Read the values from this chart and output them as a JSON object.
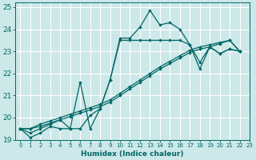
{
  "xlabel": "Humidex (Indice chaleur)",
  "background_color": "#cce8e8",
  "grid_color": "#ffffff",
  "line_color": "#006666",
  "xlim": [
    -0.5,
    23
  ],
  "ylim": [
    19,
    25.2
  ],
  "xticks": [
    0,
    1,
    2,
    3,
    4,
    5,
    6,
    7,
    8,
    9,
    10,
    11,
    12,
    13,
    14,
    15,
    16,
    17,
    18,
    19,
    20,
    21,
    22,
    23
  ],
  "yticks": [
    19,
    20,
    21,
    22,
    23,
    24,
    25
  ],
  "s0_x": [
    0,
    1,
    2,
    3,
    4,
    5,
    6,
    7,
    8,
    9,
    10,
    11,
    12,
    13,
    14,
    15,
    16,
    17,
    18,
    19,
    20,
    21,
    22
  ],
  "s0_y": [
    19.5,
    19.1,
    19.3,
    19.6,
    19.5,
    19.5,
    21.6,
    19.5,
    20.4,
    21.7,
    23.6,
    23.6,
    24.1,
    24.85,
    24.2,
    24.3,
    24.0,
    23.3,
    22.2,
    23.2,
    22.9,
    23.1,
    23.0
  ],
  "s1_x": [
    0,
    1,
    2,
    3,
    4,
    5,
    6,
    7,
    8,
    9,
    10,
    11,
    12,
    13,
    14,
    15,
    16,
    17,
    18,
    19,
    20,
    21,
    22
  ],
  "s1_y": [
    19.5,
    19.3,
    19.5,
    19.7,
    19.9,
    19.5,
    19.5,
    20.1,
    20.4,
    21.7,
    23.5,
    23.5,
    23.5,
    23.5,
    23.5,
    23.5,
    23.5,
    23.3,
    22.5,
    23.2,
    22.9,
    23.1,
    23.0
  ],
  "s2_x": [
    0,
    1,
    2,
    3,
    4,
    5,
    6,
    7,
    8,
    9,
    10,
    11,
    12,
    13,
    14,
    15,
    16,
    17,
    18,
    19,
    20,
    21,
    22
  ],
  "s2_y": [
    19.5,
    19.5,
    19.7,
    19.85,
    20.0,
    20.15,
    20.3,
    20.45,
    20.6,
    20.8,
    21.1,
    21.4,
    21.7,
    22.0,
    22.3,
    22.55,
    22.8,
    23.05,
    23.2,
    23.3,
    23.4,
    23.5,
    23.0
  ],
  "s3_x": [
    0,
    1,
    2,
    3,
    4,
    5,
    6,
    7,
    8,
    9,
    10,
    11,
    12,
    13,
    14,
    15,
    16,
    17,
    18,
    19,
    20,
    21,
    22
  ],
  "s3_y": [
    19.5,
    19.5,
    19.6,
    19.75,
    19.9,
    20.05,
    20.2,
    20.35,
    20.5,
    20.7,
    21.0,
    21.3,
    21.6,
    21.9,
    22.2,
    22.45,
    22.7,
    22.95,
    23.1,
    23.2,
    23.35,
    23.5,
    23.0
  ]
}
